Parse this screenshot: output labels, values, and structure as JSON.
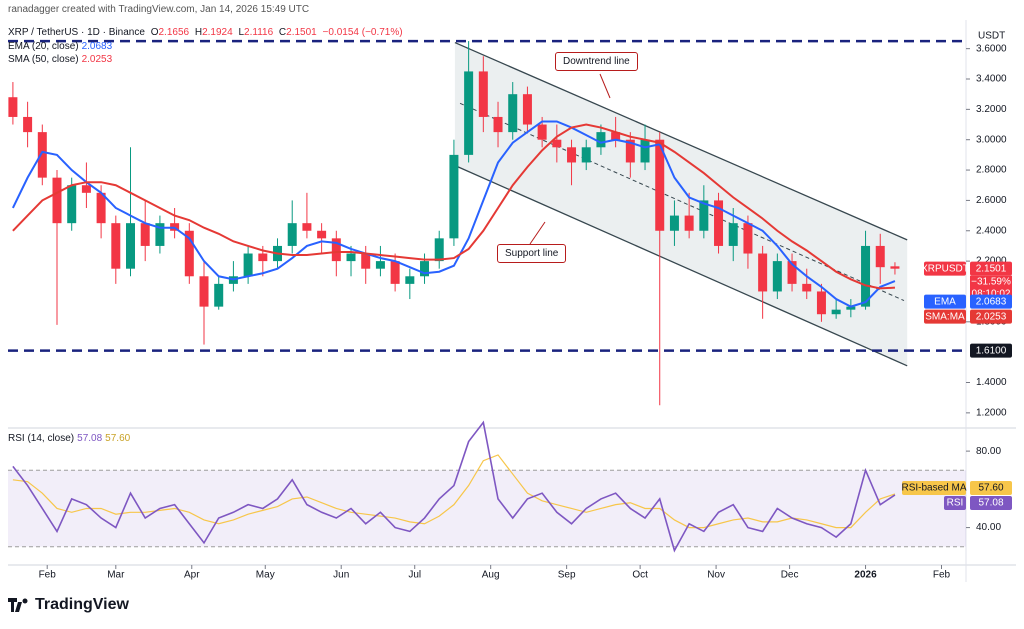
{
  "chart_data": {
    "type": "candlestick",
    "header": {
      "author": "ranadagger created with TradingView.com, Jan 14, 2026 15:49 UTC",
      "symbol": "XRP / TetherUS · 1D · Binance",
      "ohlc_letters": [
        "O",
        "H",
        "L",
        "C"
      ],
      "change": "−0.0154 (−0.71%)"
    },
    "currency": "USDT",
    "footer": "TradingView",
    "up_color": "#089981",
    "down_color": "#f23645",
    "x": [
      2,
      8,
      14,
      20,
      26,
      32,
      38,
      44,
      50,
      56,
      62,
      68,
      74,
      80,
      86,
      92,
      98,
      104,
      110,
      116,
      122,
      128,
      134,
      140,
      146,
      152,
      158,
      164,
      170,
      176,
      182,
      188,
      194,
      200,
      206,
      212,
      218,
      224,
      230,
      236,
      242,
      248,
      254,
      260,
      266,
      272,
      278,
      284,
      290,
      296,
      302,
      308,
      314,
      320,
      326,
      332,
      338,
      344,
      350,
      356,
      362
    ],
    "candles": [
      [
        3.28,
        3.38,
        3.1,
        3.15
      ],
      [
        3.15,
        3.25,
        2.95,
        3.05
      ],
      [
        3.05,
        3.1,
        2.7,
        2.75
      ],
      [
        2.75,
        2.8,
        1.78,
        2.45
      ],
      [
        2.45,
        2.75,
        2.4,
        2.7
      ],
      [
        2.7,
        2.85,
        2.55,
        2.65
      ],
      [
        2.65,
        2.7,
        2.35,
        2.45
      ],
      [
        2.45,
        2.5,
        2.05,
        2.15
      ],
      [
        2.15,
        2.95,
        2.1,
        2.45
      ],
      [
        2.45,
        2.6,
        2.2,
        2.3
      ],
      [
        2.3,
        2.5,
        2.25,
        2.45
      ],
      [
        2.45,
        2.55,
        2.35,
        2.4
      ],
      [
        2.4,
        2.45,
        2.05,
        2.1
      ],
      [
        2.1,
        2.2,
        1.65,
        1.9
      ],
      [
        1.9,
        2.1,
        1.88,
        2.05
      ],
      [
        2.05,
        2.2,
        2.0,
        2.1
      ],
      [
        2.1,
        2.3,
        2.05,
        2.25
      ],
      [
        2.25,
        2.3,
        2.1,
        2.2
      ],
      [
        2.2,
        2.35,
        2.15,
        2.3
      ],
      [
        2.3,
        2.6,
        2.25,
        2.45
      ],
      [
        2.45,
        2.65,
        2.35,
        2.4
      ],
      [
        2.4,
        2.45,
        2.25,
        2.35
      ],
      [
        2.35,
        2.4,
        2.1,
        2.2
      ],
      [
        2.2,
        2.3,
        2.1,
        2.25
      ],
      [
        2.25,
        2.3,
        2.05,
        2.15
      ],
      [
        2.15,
        2.3,
        2.1,
        2.2
      ],
      [
        2.2,
        2.25,
        2.0,
        2.05
      ],
      [
        2.05,
        2.15,
        1.95,
        2.1
      ],
      [
        2.1,
        2.25,
        2.05,
        2.2
      ],
      [
        2.2,
        2.4,
        2.15,
        2.35
      ],
      [
        2.35,
        3.0,
        2.3,
        2.9
      ],
      [
        2.9,
        3.65,
        2.85,
        3.45
      ],
      [
        3.45,
        3.55,
        3.05,
        3.15
      ],
      [
        3.15,
        3.25,
        2.95,
        3.05
      ],
      [
        3.05,
        3.38,
        3.0,
        3.3
      ],
      [
        3.3,
        3.35,
        3.05,
        3.1
      ],
      [
        3.1,
        3.15,
        2.95,
        3.0
      ],
      [
        3.0,
        3.1,
        2.85,
        2.95
      ],
      [
        2.95,
        3.0,
        2.7,
        2.85
      ],
      [
        2.85,
        3.0,
        2.8,
        2.95
      ],
      [
        2.95,
        3.1,
        2.9,
        3.05
      ],
      [
        3.05,
        3.15,
        2.95,
        3.0
      ],
      [
        3.0,
        3.05,
        2.75,
        2.85
      ],
      [
        2.85,
        3.1,
        2.8,
        3.0
      ],
      [
        3.0,
        3.05,
        1.25,
        2.4
      ],
      [
        2.4,
        2.6,
        2.3,
        2.5
      ],
      [
        2.5,
        2.65,
        2.35,
        2.4
      ],
      [
        2.4,
        2.7,
        2.35,
        2.6
      ],
      [
        2.6,
        2.65,
        2.25,
        2.3
      ],
      [
        2.3,
        2.55,
        2.2,
        2.45
      ],
      [
        2.45,
        2.5,
        2.15,
        2.25
      ],
      [
        2.25,
        2.3,
        1.82,
        2.0
      ],
      [
        2.0,
        2.25,
        1.95,
        2.2
      ],
      [
        2.2,
        2.25,
        2.0,
        2.05
      ],
      [
        2.05,
        2.15,
        1.95,
        2.0
      ],
      [
        2.0,
        2.05,
        1.8,
        1.85
      ],
      [
        1.85,
        1.95,
        1.82,
        1.88
      ],
      [
        1.88,
        1.95,
        1.83,
        1.9
      ],
      [
        1.9,
        2.4,
        1.88,
        2.3
      ],
      [
        2.3,
        2.38,
        2.05,
        2.16
      ],
      [
        2.1656,
        2.1924,
        2.1116,
        2.1501
      ]
    ],
    "ema": {
      "name": "EMA",
      "legend": "EMA (20, close)",
      "color": "#2962ff",
      "values": [
        2.55,
        2.75,
        2.92,
        2.9,
        2.8,
        2.72,
        2.65,
        2.55,
        2.5,
        2.45,
        2.42,
        2.42,
        2.35,
        2.2,
        2.1,
        2.08,
        2.1,
        2.12,
        2.15,
        2.22,
        2.3,
        2.33,
        2.32,
        2.28,
        2.25,
        2.22,
        2.2,
        2.16,
        2.12,
        2.13,
        2.17,
        2.35,
        2.6,
        2.85,
        2.98,
        3.05,
        3.12,
        3.12,
        3.08,
        3.03,
        2.98,
        3.0,
        2.98,
        2.95,
        2.97,
        2.75,
        2.62,
        2.58,
        2.55,
        2.5,
        2.45,
        2.4,
        2.3,
        2.18,
        2.1,
        2.03,
        1.95,
        1.9,
        1.93,
        2.03,
        2.0683
      ]
    },
    "sma": {
      "name": "SMA:MA",
      "legend": "SMA (50, close)",
      "color": "#e53935",
      "values": [
        2.4,
        2.5,
        2.6,
        2.65,
        2.7,
        2.72,
        2.72,
        2.7,
        2.65,
        2.6,
        2.55,
        2.5,
        2.47,
        2.42,
        2.38,
        2.33,
        2.3,
        2.27,
        2.25,
        2.24,
        2.24,
        2.25,
        2.26,
        2.26,
        2.25,
        2.24,
        2.23,
        2.22,
        2.21,
        2.21,
        2.22,
        2.28,
        2.4,
        2.55,
        2.7,
        2.82,
        2.93,
        3.02,
        3.08,
        3.1,
        3.08,
        3.05,
        3.02,
        3.0,
        2.98,
        2.92,
        2.85,
        2.78,
        2.7,
        2.62,
        2.55,
        2.48,
        2.4,
        2.33,
        2.27,
        2.2,
        2.13,
        2.08,
        2.04,
        2.02,
        2.0253
      ]
    },
    "price_tag": {
      "name": "XRPUSDT",
      "change": "−31.59%",
      "countdown": "08:10:02"
    },
    "levels": [
      3.65,
      {
        "value": 1.61,
        "label": "1.6100"
      }
    ],
    "level_color": "#1a237e",
    "channel": {
      "color": "#37474f",
      "upper": [
        [
          182.4,
          3.64
        ],
        [
          367,
          2.34
        ]
      ],
      "middle": [
        [
          184.5,
          3.24
        ],
        [
          365.7,
          1.94
        ]
      ],
      "lower": [
        [
          182.4,
          2.83
        ],
        [
          367,
          1.51
        ]
      ]
    },
    "annotations": [
      "Downtrend line",
      "Support line"
    ],
    "xlim": [
      0,
      391
    ],
    "xticks": [
      {
        "value": 16,
        "label": "Feb"
      },
      {
        "value": 44,
        "label": "Mar"
      },
      {
        "value": 75,
        "label": "Apr"
      },
      {
        "value": 105,
        "label": "May"
      },
      {
        "value": 136,
        "label": "Jun"
      },
      {
        "value": 166,
        "label": "Jul"
      },
      {
        "value": 197,
        "label": "Aug"
      },
      {
        "value": 228,
        "label": "Sep"
      },
      {
        "value": 258,
        "label": "Oct"
      },
      {
        "value": 289,
        "label": "Nov"
      },
      {
        "value": 319,
        "label": "Dec"
      },
      {
        "value": 350,
        "label": "2026"
      },
      {
        "value": 381,
        "label": "Feb"
      }
    ],
    "ylim": [
      1.12,
      3.69
    ],
    "yticks": [
      {
        "value": 1.2,
        "label": "1.2000"
      },
      {
        "value": 1.4,
        "label": "1.4000"
      },
      {
        "value": 1.8,
        "label": "1.8000"
      },
      {
        "value": 2.2,
        "label": "2.2000"
      },
      {
        "value": 2.4,
        "label": "2.4000"
      },
      {
        "value": 2.6,
        "label": "2.6000"
      },
      {
        "value": 2.8,
        "label": "2.8000"
      },
      {
        "value": 3.0,
        "label": "3.0000"
      },
      {
        "value": 3.2,
        "label": "3.2000"
      },
      {
        "value": 3.4,
        "label": "3.4000"
      },
      {
        "value": 3.6,
        "label": "3.6000"
      }
    ],
    "rsi": {
      "name": "RSI",
      "legend": "RSI (14, close)",
      "color": "#7e57c2",
      "values": [
        72,
        62,
        50,
        38,
        55,
        52,
        45,
        40,
        58,
        45,
        50,
        52,
        42,
        32,
        45,
        48,
        52,
        50,
        55,
        65,
        52,
        48,
        45,
        50,
        42,
        48,
        40,
        38,
        45,
        55,
        62,
        85,
        95,
        55,
        45,
        55,
        58,
        48,
        42,
        50,
        55,
        58,
        50,
        45,
        55,
        28,
        42,
        38,
        48,
        52,
        40,
        38,
        50,
        45,
        42,
        40,
        35,
        42,
        70,
        52,
        57.08
      ]
    },
    "rsi_ma": {
      "name": "RSI-based MA",
      "color": "#f7c64a",
      "last_label": "57.60",
      "values": [
        65,
        64,
        58,
        50,
        48,
        50,
        50,
        47,
        48,
        48,
        49,
        50,
        48,
        44,
        42,
        44,
        47,
        49,
        51,
        55,
        56,
        53,
        50,
        48,
        47,
        46,
        45,
        43,
        42,
        46,
        52,
        62,
        75,
        78,
        68,
        58,
        54,
        52,
        50,
        48,
        50,
        52,
        53,
        50,
        50,
        44,
        40,
        40,
        42,
        44,
        45,
        43,
        43,
        45,
        44,
        42,
        40,
        40,
        48,
        55,
        57.6
      ]
    },
    "rsi_band": [
      30,
      70
    ],
    "rsi_ylim": [
      22,
      90
    ],
    "rsi_yticks": [
      {
        "value": 80,
        "label": "80.00"
      },
      {
        "value": 40,
        "label": "40.00"
      }
    ]
  }
}
